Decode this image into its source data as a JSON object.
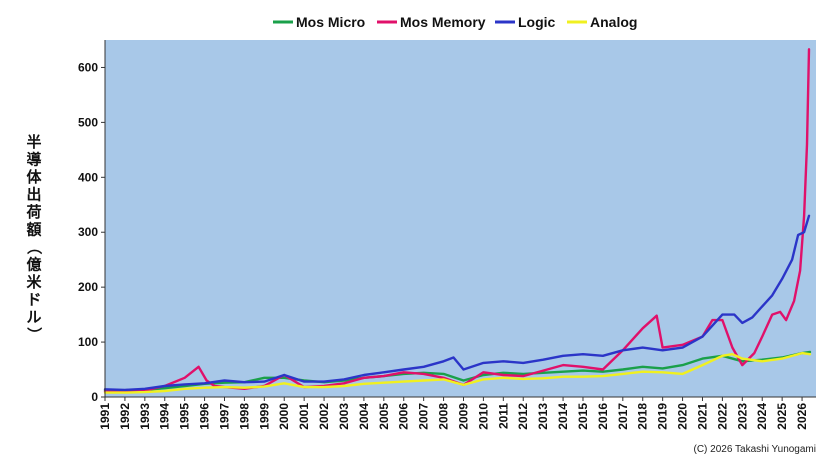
{
  "chart_data": {
    "type": "line",
    "title": "",
    "xlabel": "",
    "ylabel": "半導体出荷額（億米ドル）",
    "ylim": [
      0,
      650
    ],
    "xlim": [
      1991,
      2026.7
    ],
    "y_ticks": [
      0,
      100,
      200,
      300,
      400,
      500,
      600
    ],
    "x_ticks": [
      "1991",
      "1992",
      "1993",
      "1994",
      "1995",
      "1996",
      "1997",
      "1998",
      "1999",
      "2000",
      "2001",
      "2002",
      "2003",
      "2004",
      "2005",
      "2006",
      "2007",
      "2008",
      "2009",
      "2010",
      "2011",
      "2012",
      "2013",
      "2014",
      "2015",
      "2016",
      "2017",
      "2018",
      "2019",
      "2020",
      "2021",
      "2022",
      "2023",
      "2024",
      "2025",
      "2026"
    ],
    "grid": false,
    "legend_position": "top",
    "plot_background": "#a8c8e8",
    "copyright": "(C) 2026 Takashi Yunogami",
    "series": [
      {
        "name": "Mos Micro",
        "color": "#1aa04a",
        "points": [
          [
            1991,
            12
          ],
          [
            1992,
            12
          ],
          [
            1993,
            13
          ],
          [
            1994,
            16
          ],
          [
            1995,
            20
          ],
          [
            1996,
            24
          ],
          [
            1997,
            26
          ],
          [
            1998,
            27
          ],
          [
            1999,
            35
          ],
          [
            2000,
            35
          ],
          [
            2001,
            30
          ],
          [
            2002,
            27
          ],
          [
            2003,
            30
          ],
          [
            2004,
            35
          ],
          [
            2005,
            38
          ],
          [
            2006,
            42
          ],
          [
            2007,
            44
          ],
          [
            2008,
            42
          ],
          [
            2009,
            30
          ],
          [
            2010,
            40
          ],
          [
            2011,
            44
          ],
          [
            2012,
            42
          ],
          [
            2013,
            44
          ],
          [
            2014,
            46
          ],
          [
            2015,
            48
          ],
          [
            2016,
            46
          ],
          [
            2017,
            50
          ],
          [
            2018,
            55
          ],
          [
            2019,
            52
          ],
          [
            2020,
            58
          ],
          [
            2021,
            70
          ],
          [
            2022,
            75
          ],
          [
            2023,
            65
          ],
          [
            2024,
            68
          ],
          [
            2025,
            72
          ],
          [
            2026,
            80
          ],
          [
            2026.4,
            82
          ]
        ]
      },
      {
        "name": "Mos Memory",
        "color": "#e0106a",
        "points": [
          [
            1991,
            10
          ],
          [
            1992,
            10
          ],
          [
            1993,
            12
          ],
          [
            1994,
            20
          ],
          [
            1995,
            35
          ],
          [
            1995.7,
            55
          ],
          [
            1996.1,
            30
          ],
          [
            1996.5,
            20
          ],
          [
            1997,
            18
          ],
          [
            1998,
            15
          ],
          [
            1999,
            20
          ],
          [
            2000,
            40
          ],
          [
            2001,
            18
          ],
          [
            2002,
            20
          ],
          [
            2003,
            25
          ],
          [
            2004,
            35
          ],
          [
            2005,
            38
          ],
          [
            2006,
            45
          ],
          [
            2007,
            42
          ],
          [
            2008,
            35
          ],
          [
            2009,
            22
          ],
          [
            2010,
            45
          ],
          [
            2011,
            40
          ],
          [
            2012,
            38
          ],
          [
            2013,
            48
          ],
          [
            2014,
            58
          ],
          [
            2015,
            55
          ],
          [
            2016,
            50
          ],
          [
            2017,
            85
          ],
          [
            2018,
            125
          ],
          [
            2018.7,
            148
          ],
          [
            2019,
            90
          ],
          [
            2020,
            95
          ],
          [
            2021,
            110
          ],
          [
            2021.5,
            140
          ],
          [
            2022,
            140
          ],
          [
            2022.5,
            90
          ],
          [
            2023,
            58
          ],
          [
            2023.6,
            80
          ],
          [
            2024,
            110
          ],
          [
            2024.5,
            150
          ],
          [
            2024.9,
            155
          ],
          [
            2025.2,
            140
          ],
          [
            2025.6,
            175
          ],
          [
            2025.9,
            230
          ],
          [
            2026.1,
            330
          ],
          [
            2026.25,
            460
          ],
          [
            2026.35,
            633
          ]
        ]
      },
      {
        "name": "Logic",
        "color": "#2b35c8",
        "points": [
          [
            1991,
            14
          ],
          [
            1992,
            13
          ],
          [
            1993,
            15
          ],
          [
            1994,
            20
          ],
          [
            1995,
            23
          ],
          [
            1996,
            25
          ],
          [
            1997,
            30
          ],
          [
            1998,
            27
          ],
          [
            1999,
            28
          ],
          [
            2000,
            40
          ],
          [
            2001,
            28
          ],
          [
            2002,
            28
          ],
          [
            2003,
            32
          ],
          [
            2004,
            40
          ],
          [
            2005,
            45
          ],
          [
            2006,
            50
          ],
          [
            2007,
            55
          ],
          [
            2008,
            65
          ],
          [
            2008.5,
            72
          ],
          [
            2009,
            50
          ],
          [
            2010,
            62
          ],
          [
            2011,
            65
          ],
          [
            2012,
            62
          ],
          [
            2013,
            68
          ],
          [
            2014,
            75
          ],
          [
            2015,
            78
          ],
          [
            2016,
            75
          ],
          [
            2017,
            85
          ],
          [
            2018,
            90
          ],
          [
            2019,
            85
          ],
          [
            2020,
            90
          ],
          [
            2021,
            110
          ],
          [
            2022,
            150
          ],
          [
            2022.6,
            150
          ],
          [
            2023,
            135
          ],
          [
            2023.5,
            145
          ],
          [
            2024,
            165
          ],
          [
            2024.5,
            185
          ],
          [
            2025,
            215
          ],
          [
            2025.5,
            250
          ],
          [
            2025.8,
            295
          ],
          [
            2026.1,
            300
          ],
          [
            2026.35,
            330
          ]
        ]
      },
      {
        "name": "Analog",
        "color": "#f0f020",
        "points": [
          [
            1991,
            8
          ],
          [
            1992,
            8
          ],
          [
            1993,
            9
          ],
          [
            1994,
            11
          ],
          [
            1995,
            15
          ],
          [
            1996,
            17
          ],
          [
            1997,
            18
          ],
          [
            1998,
            17
          ],
          [
            1999,
            19
          ],
          [
            2000,
            25
          ],
          [
            2001,
            18
          ],
          [
            2002,
            18
          ],
          [
            2003,
            20
          ],
          [
            2004,
            24
          ],
          [
            2005,
            26
          ],
          [
            2006,
            28
          ],
          [
            2007,
            30
          ],
          [
            2008,
            32
          ],
          [
            2009,
            22
          ],
          [
            2010,
            32
          ],
          [
            2011,
            35
          ],
          [
            2012,
            33
          ],
          [
            2013,
            34
          ],
          [
            2014,
            37
          ],
          [
            2015,
            37
          ],
          [
            2016,
            38
          ],
          [
            2017,
            42
          ],
          [
            2018,
            46
          ],
          [
            2019,
            45
          ],
          [
            2020,
            42
          ],
          [
            2021,
            58
          ],
          [
            2022,
            75
          ],
          [
            2022.5,
            78
          ],
          [
            2023,
            70
          ],
          [
            2024,
            65
          ],
          [
            2025,
            70
          ],
          [
            2026,
            80
          ],
          [
            2026.4,
            78
          ]
        ]
      }
    ]
  }
}
